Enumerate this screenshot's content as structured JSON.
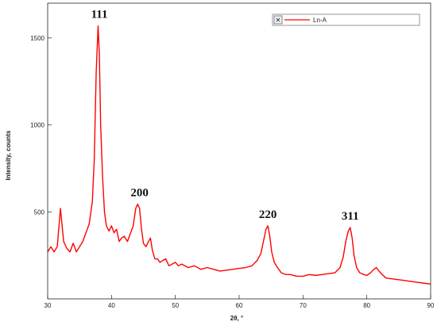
{
  "chart_data": {
    "type": "line",
    "title": "",
    "xlabel": "2θ, °",
    "ylabel": "Intensity, counts",
    "xlim": [
      30,
      90
    ],
    "ylim": [
      0,
      1700
    ],
    "x_ticks": [
      30,
      40,
      50,
      60,
      70,
      80,
      90
    ],
    "y_ticks": [
      500,
      1000,
      1500
    ],
    "grid": false,
    "legend_position": "top-right",
    "series": [
      {
        "name": "Ln-A",
        "color": "#ff0000",
        "x": [
          30,
          30.5,
          31,
          31.5,
          32,
          32.5,
          33,
          33.5,
          34,
          34.5,
          35,
          35.5,
          36,
          36.5,
          37,
          37.3,
          37.6,
          37.9,
          38.1,
          38.3,
          38.6,
          38.9,
          39.2,
          39.6,
          40,
          40.4,
          40.8,
          41.2,
          41.6,
          42,
          42.5,
          43,
          43.4,
          43.8,
          44.1,
          44.4,
          44.7,
          45,
          45.4,
          45.8,
          46.1,
          46.4,
          46.8,
          47.2,
          47.6,
          48,
          48.5,
          49,
          49.5,
          50,
          50.5,
          51,
          52,
          53,
          54,
          55,
          56,
          57,
          58,
          59,
          60,
          61,
          62,
          62.8,
          63.4,
          63.8,
          64.2,
          64.5,
          64.8,
          65.1,
          65.5,
          66,
          66.6,
          67.3,
          68,
          69,
          70,
          71,
          72,
          73,
          74,
          75,
          75.8,
          76.3,
          76.7,
          77.1,
          77.4,
          77.7,
          78,
          78.4,
          78.9,
          79.5,
          80,
          80.6,
          81.1,
          81.5,
          81.9,
          82.4,
          83,
          84,
          85,
          86,
          87,
          88,
          89,
          90
        ],
        "y": [
          270,
          300,
          270,
          300,
          520,
          330,
          290,
          270,
          320,
          270,
          300,
          330,
          380,
          430,
          560,
          800,
          1300,
          1570,
          1400,
          1000,
          700,
          500,
          420,
          390,
          420,
          380,
          400,
          330,
          350,
          360,
          330,
          380,
          420,
          520,
          545,
          520,
          400,
          320,
          300,
          330,
          350,
          280,
          230,
          230,
          210,
          220,
          230,
          190,
          200,
          210,
          190,
          200,
          180,
          190,
          170,
          180,
          170,
          160,
          165,
          170,
          175,
          180,
          190,
          220,
          260,
          330,
          400,
          420,
          360,
          270,
          210,
          180,
          150,
          140,
          140,
          130,
          130,
          140,
          135,
          140,
          145,
          150,
          180,
          240,
          330,
          390,
          410,
          350,
          250,
          180,
          150,
          140,
          135,
          150,
          170,
          180,
          160,
          140,
          120,
          115,
          110,
          105,
          100,
          95,
          90,
          85
        ]
      }
    ],
    "annotations": [
      {
        "text": "111",
        "x": 38.1,
        "y": 1570
      },
      {
        "text": "200",
        "x": 44.4,
        "y": 545
      },
      {
        "text": "220",
        "x": 64.5,
        "y": 420
      },
      {
        "text": "311",
        "x": 77.4,
        "y": 410
      }
    ]
  },
  "legend": {
    "close_glyph": "✕"
  }
}
